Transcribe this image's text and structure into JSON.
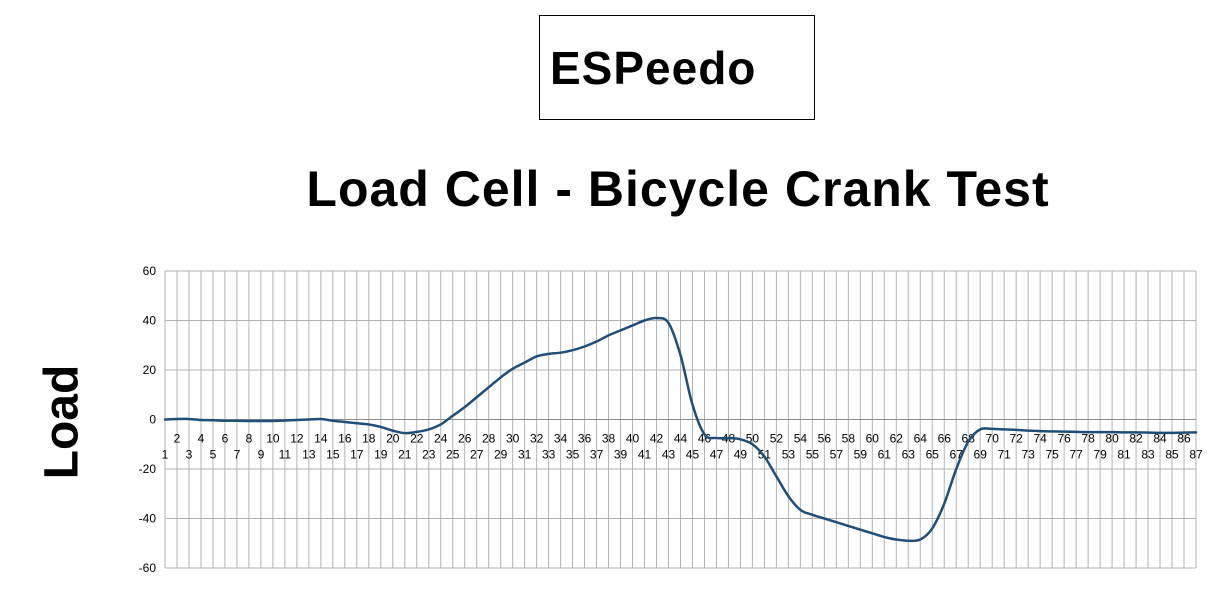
{
  "logo": {
    "text": "ESPeedo"
  },
  "chart_data": {
    "type": "line",
    "title": "Load Cell - Bicycle Crank Test",
    "xlabel": "",
    "ylabel": "Load",
    "ylim": [
      -60,
      60
    ],
    "yticks": [
      -60,
      -40,
      -20,
      0,
      20,
      40,
      60
    ],
    "grid": true,
    "legend": "none",
    "line_color": "#1f4e79",
    "grid_color": "#b3b3b3",
    "x": [
      1,
      2,
      3,
      4,
      5,
      6,
      7,
      8,
      9,
      10,
      11,
      12,
      13,
      14,
      15,
      16,
      17,
      18,
      19,
      20,
      21,
      22,
      23,
      24,
      25,
      26,
      27,
      28,
      29,
      30,
      31,
      32,
      33,
      34,
      35,
      36,
      37,
      38,
      39,
      40,
      41,
      42,
      43,
      44,
      45,
      46,
      47,
      48,
      49,
      50,
      51,
      52,
      53,
      54,
      55,
      56,
      57,
      58,
      59,
      60,
      61,
      62,
      63,
      64,
      65,
      66,
      67,
      68,
      69,
      70,
      71,
      72,
      73,
      74,
      75,
      76,
      77,
      78,
      79,
      80,
      81,
      82,
      83,
      84,
      85,
      86,
      87
    ],
    "series": [
      {
        "values": [
          0,
          0.2,
          0.2,
          -0.2,
          -0.3,
          -0.5,
          -0.5,
          -0.6,
          -0.6,
          -0.6,
          -0.4,
          -0.2,
          0,
          0.2,
          -0.5,
          -1,
          -1.5,
          -2,
          -3,
          -4.5,
          -5.5,
          -5,
          -4,
          -2,
          1.5,
          5,
          9,
          13,
          17,
          20.5,
          23,
          25.5,
          26.5,
          27,
          28,
          29.5,
          31.5,
          34,
          36,
          38,
          40,
          41,
          39,
          26,
          6,
          -6,
          -7.5,
          -7.5,
          -8,
          -10,
          -15,
          -23,
          -31,
          -36.5,
          -38.5,
          -40,
          -41.5,
          -43,
          -44.5,
          -46,
          -47.5,
          -48.5,
          -49,
          -48.5,
          -44,
          -34,
          -20,
          -9,
          -4,
          -3.8,
          -4,
          -4.2,
          -4.5,
          -4.7,
          -4.8,
          -4.9,
          -5,
          -5.1,
          -5.1,
          -5.1,
          -5.2,
          -5.2,
          -5.3,
          -5.4,
          -5.4,
          -5.3,
          -5.2
        ]
      }
    ]
  }
}
